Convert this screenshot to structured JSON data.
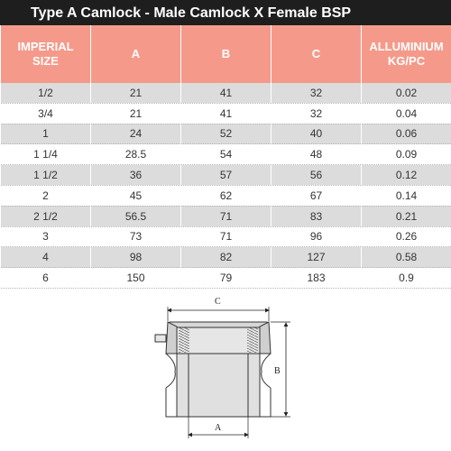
{
  "title": "Type A Camlock - Male Camlock X Female BSP",
  "table": {
    "headers": [
      [
        "IMPERIAL",
        "SIZE"
      ],
      [
        "A"
      ],
      [
        "B"
      ],
      [
        "C"
      ],
      [
        "ALLUMINIUM",
        "KG/PC"
      ]
    ],
    "rows": [
      [
        "1/2",
        "21",
        "41",
        "32",
        "0.02"
      ],
      [
        "3/4",
        "21",
        "41",
        "32",
        "0.04"
      ],
      [
        "1",
        "24",
        "52",
        "40",
        "0.06"
      ],
      [
        "1 1/4",
        "28.5",
        "54",
        "48",
        "0.09"
      ],
      [
        "1 1/2",
        "36",
        "57",
        "56",
        "0.12"
      ],
      [
        "2",
        "45",
        "62",
        "67",
        "0.14"
      ],
      [
        "2 1/2",
        "56.5",
        "71",
        "83",
        "0.21"
      ],
      [
        "3",
        "73",
        "71",
        "96",
        "0.26"
      ],
      [
        "4",
        "98",
        "82",
        "127",
        "0.58"
      ],
      [
        "6",
        "150",
        "79",
        "183",
        "0.9"
      ]
    ]
  },
  "diagram": {
    "label_c": "C",
    "label_b": "B",
    "label_a": "A"
  }
}
